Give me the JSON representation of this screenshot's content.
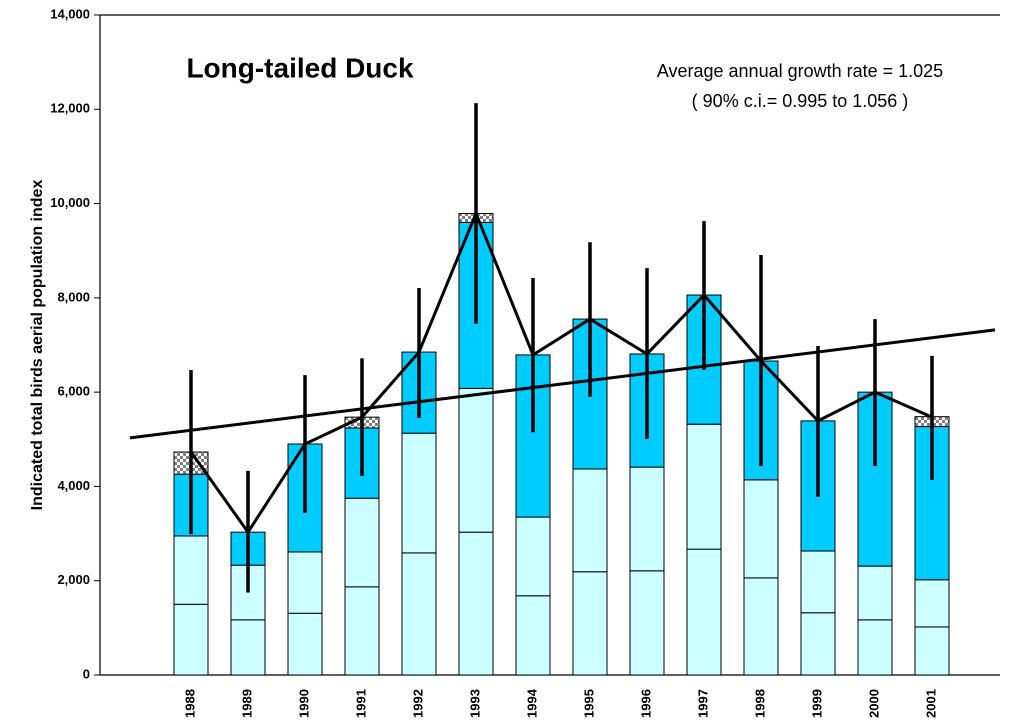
{
  "chart_data": {
    "type": "stacked-bar",
    "title": "Long-tailed Duck",
    "y_label": "Indicated total birds aerial population index",
    "annotations": [
      "Average annual growth rate = 1.025",
      "( 90% c.i.= 0.995 to 1.056 )"
    ],
    "categories": [
      "1988",
      "1989",
      "1990",
      "1991",
      "1992",
      "1993",
      "1994",
      "1995",
      "1996",
      "1997",
      "1998",
      "1999",
      "2000",
      "2001"
    ],
    "series": [
      {
        "color": "#ccffff",
        "values": [
          1500,
          1170,
          1310,
          1870,
          2590,
          3030,
          1680,
          2190,
          2210,
          2670,
          2060,
          1320,
          1170,
          1020
        ]
      },
      {
        "color": "#ccffff",
        "values": [
          1450,
          1160,
          1300,
          1880,
          2540,
          3050,
          1670,
          2180,
          2200,
          2650,
          2080,
          1310,
          1140,
          1000
        ]
      },
      {
        "color": "#00ccff",
        "values": [
          1310,
          700,
          2290,
          1490,
          1720,
          3520,
          3440,
          3180,
          2400,
          2740,
          2520,
          2760,
          3690,
          3250
        ]
      },
      {
        "color": "#808080",
        "pattern": "checker",
        "values": [
          470,
          0,
          0,
          230,
          0,
          190,
          0,
          0,
          0,
          0,
          0,
          0,
          0,
          210
        ]
      }
    ],
    "index": [
      4730,
      3030,
      4900,
      5470,
      6850,
      9790,
      6790,
      7550,
      6810,
      8060,
      6660,
      5390,
      6000,
      5470
    ],
    "index_color": "#000000",
    "ci_lower": [
      2990,
      1750,
      3440,
      4220,
      5450,
      7450,
      5150,
      5900,
      5010,
      6470,
      4430,
      3780,
      4430,
      4140
    ],
    "ci_upper": [
      6470,
      4330,
      6360,
      6720,
      8210,
      12130,
      8420,
      9180,
      8630,
      9630,
      8910,
      6980,
      7550,
      6770
    ],
    "trend": {
      "start": 5030,
      "end": 7320
    },
    "ylim": [
      0,
      14000
    ],
    "yticks": [
      0,
      {
        "value": 2000,
        "label": "2,000"
      },
      {
        "value": 4000,
        "label": "4,000"
      },
      {
        "value": 6000,
        "label": "6,000"
      },
      {
        "value": 8000,
        "label": "8,000"
      },
      {
        "value": 10000,
        "label": "10,000"
      },
      {
        "value": 12000,
        "label": "12,000"
      },
      {
        "value": 14000,
        "label": "14,000"
      }
    ],
    "grid": false
  }
}
